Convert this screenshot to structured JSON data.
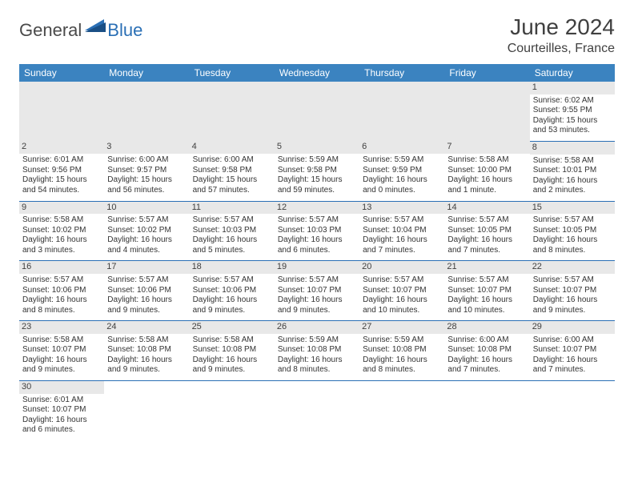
{
  "logo": {
    "general": "General",
    "blue": "Blue"
  },
  "title": "June 2024",
  "location": "Courteilles, France",
  "colors": {
    "header_bg": "#3b83c0",
    "header_text": "#ffffff",
    "daynum_bg": "#e8e8e8",
    "border": "#2a6fb5",
    "text": "#333333"
  },
  "weekdays": [
    "Sunday",
    "Monday",
    "Tuesday",
    "Wednesday",
    "Thursday",
    "Friday",
    "Saturday"
  ],
  "days": {
    "1": {
      "sunrise": "6:02 AM",
      "sunset": "9:55 PM",
      "daylight": "15 hours and 53 minutes."
    },
    "2": {
      "sunrise": "6:01 AM",
      "sunset": "9:56 PM",
      "daylight": "15 hours and 54 minutes."
    },
    "3": {
      "sunrise": "6:00 AM",
      "sunset": "9:57 PM",
      "daylight": "15 hours and 56 minutes."
    },
    "4": {
      "sunrise": "6:00 AM",
      "sunset": "9:58 PM",
      "daylight": "15 hours and 57 minutes."
    },
    "5": {
      "sunrise": "5:59 AM",
      "sunset": "9:58 PM",
      "daylight": "15 hours and 59 minutes."
    },
    "6": {
      "sunrise": "5:59 AM",
      "sunset": "9:59 PM",
      "daylight": "16 hours and 0 minutes."
    },
    "7": {
      "sunrise": "5:58 AM",
      "sunset": "10:00 PM",
      "daylight": "16 hours and 1 minute."
    },
    "8": {
      "sunrise": "5:58 AM",
      "sunset": "10:01 PM",
      "daylight": "16 hours and 2 minutes."
    },
    "9": {
      "sunrise": "5:58 AM",
      "sunset": "10:02 PM",
      "daylight": "16 hours and 3 minutes."
    },
    "10": {
      "sunrise": "5:57 AM",
      "sunset": "10:02 PM",
      "daylight": "16 hours and 4 minutes."
    },
    "11": {
      "sunrise": "5:57 AM",
      "sunset": "10:03 PM",
      "daylight": "16 hours and 5 minutes."
    },
    "12": {
      "sunrise": "5:57 AM",
      "sunset": "10:03 PM",
      "daylight": "16 hours and 6 minutes."
    },
    "13": {
      "sunrise": "5:57 AM",
      "sunset": "10:04 PM",
      "daylight": "16 hours and 7 minutes."
    },
    "14": {
      "sunrise": "5:57 AM",
      "sunset": "10:05 PM",
      "daylight": "16 hours and 7 minutes."
    },
    "15": {
      "sunrise": "5:57 AM",
      "sunset": "10:05 PM",
      "daylight": "16 hours and 8 minutes."
    },
    "16": {
      "sunrise": "5:57 AM",
      "sunset": "10:06 PM",
      "daylight": "16 hours and 8 minutes."
    },
    "17": {
      "sunrise": "5:57 AM",
      "sunset": "10:06 PM",
      "daylight": "16 hours and 9 minutes."
    },
    "18": {
      "sunrise": "5:57 AM",
      "sunset": "10:06 PM",
      "daylight": "16 hours and 9 minutes."
    },
    "19": {
      "sunrise": "5:57 AM",
      "sunset": "10:07 PM",
      "daylight": "16 hours and 9 minutes."
    },
    "20": {
      "sunrise": "5:57 AM",
      "sunset": "10:07 PM",
      "daylight": "16 hours and 10 minutes."
    },
    "21": {
      "sunrise": "5:57 AM",
      "sunset": "10:07 PM",
      "daylight": "16 hours and 10 minutes."
    },
    "22": {
      "sunrise": "5:57 AM",
      "sunset": "10:07 PM",
      "daylight": "16 hours and 9 minutes."
    },
    "23": {
      "sunrise": "5:58 AM",
      "sunset": "10:07 PM",
      "daylight": "16 hours and 9 minutes."
    },
    "24": {
      "sunrise": "5:58 AM",
      "sunset": "10:08 PM",
      "daylight": "16 hours and 9 minutes."
    },
    "25": {
      "sunrise": "5:58 AM",
      "sunset": "10:08 PM",
      "daylight": "16 hours and 9 minutes."
    },
    "26": {
      "sunrise": "5:59 AM",
      "sunset": "10:08 PM",
      "daylight": "16 hours and 8 minutes."
    },
    "27": {
      "sunrise": "5:59 AM",
      "sunset": "10:08 PM",
      "daylight": "16 hours and 8 minutes."
    },
    "28": {
      "sunrise": "6:00 AM",
      "sunset": "10:08 PM",
      "daylight": "16 hours and 7 minutes."
    },
    "29": {
      "sunrise": "6:00 AM",
      "sunset": "10:07 PM",
      "daylight": "16 hours and 7 minutes."
    },
    "30": {
      "sunrise": "6:01 AM",
      "sunset": "10:07 PM",
      "daylight": "16 hours and 6 minutes."
    }
  },
  "labels": {
    "sunrise": "Sunrise: ",
    "sunset": "Sunset: ",
    "daylight": "Daylight: "
  },
  "grid": [
    [
      null,
      null,
      null,
      null,
      null,
      null,
      "1"
    ],
    [
      "2",
      "3",
      "4",
      "5",
      "6",
      "7",
      "8"
    ],
    [
      "9",
      "10",
      "11",
      "12",
      "13",
      "14",
      "15"
    ],
    [
      "16",
      "17",
      "18",
      "19",
      "20",
      "21",
      "22"
    ],
    [
      "23",
      "24",
      "25",
      "26",
      "27",
      "28",
      "29"
    ],
    [
      "30",
      null,
      null,
      null,
      null,
      null,
      null
    ]
  ]
}
